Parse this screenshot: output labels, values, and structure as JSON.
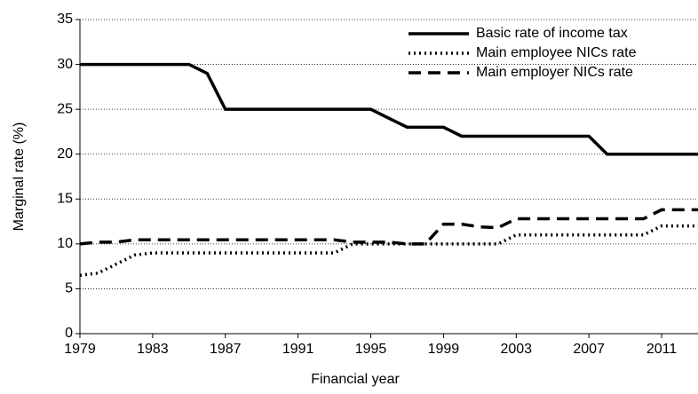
{
  "chart_data": {
    "type": "line",
    "x_label": "Financial year",
    "y_label": "Marginal rate (%)",
    "x": [
      1979,
      1980,
      1981,
      1982,
      1983,
      1984,
      1985,
      1986,
      1987,
      1988,
      1989,
      1990,
      1991,
      1992,
      1993,
      1994,
      1995,
      1996,
      1997,
      1998,
      1999,
      2000,
      2001,
      2002,
      2003,
      2004,
      2005,
      2006,
      2007,
      2008,
      2009,
      2010,
      2011,
      2012,
      2013
    ],
    "series": [
      {
        "name": "Basic rate of income tax",
        "color": "#000000",
        "dash": "solid",
        "values": [
          30,
          30,
          30,
          30,
          30,
          30,
          30,
          29,
          25,
          25,
          25,
          25,
          25,
          25,
          25,
          25,
          25,
          24,
          23,
          23,
          23,
          22,
          22,
          22,
          22,
          22,
          22,
          22,
          22,
          20,
          20,
          20,
          20,
          20,
          20
        ]
      },
      {
        "name": "Main employee NICs rate",
        "color": "#000000",
        "dash": "dotted",
        "values": [
          6.5,
          6.75,
          7.75,
          8.75,
          9,
          9,
          9,
          9,
          9,
          9,
          9,
          9,
          9,
          9,
          9,
          10,
          10,
          10,
          10,
          10,
          10,
          10,
          10,
          10,
          11,
          11,
          11,
          11,
          11,
          11,
          11,
          11,
          12,
          12,
          12
        ]
      },
      {
        "name": "Main employer NICs rate",
        "color": "#000000",
        "dash": "dashed",
        "values": [
          10,
          10.2,
          10.2,
          10.45,
          10.45,
          10.45,
          10.45,
          10.45,
          10.45,
          10.45,
          10.45,
          10.45,
          10.45,
          10.45,
          10.45,
          10.2,
          10.2,
          10.2,
          10,
          10,
          12.2,
          12.2,
          11.9,
          11.8,
          12.8,
          12.8,
          12.8,
          12.8,
          12.8,
          12.8,
          12.8,
          12.8,
          13.8,
          13.8,
          13.8
        ]
      }
    ],
    "xlim": [
      1979,
      2013
    ],
    "xticks": [
      1979,
      1983,
      1987,
      1991,
      1995,
      1999,
      2003,
      2007,
      2011
    ],
    "ylim": [
      0,
      35
    ],
    "yticks": [
      0,
      5,
      10,
      15,
      20,
      25,
      30,
      35
    ],
    "grid": true,
    "legend": "top-right"
  }
}
